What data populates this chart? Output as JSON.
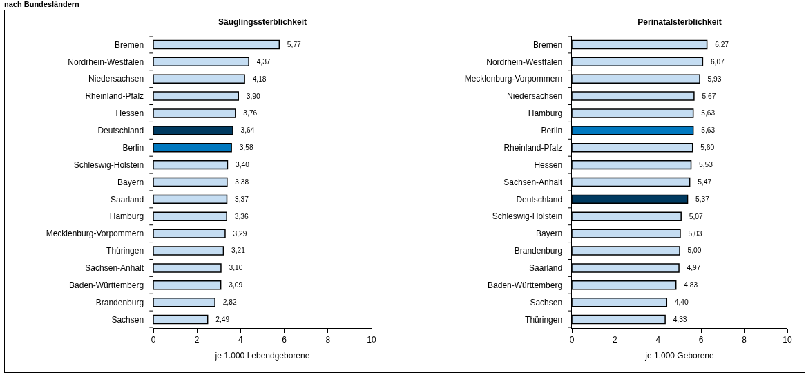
{
  "chart_data": [
    {
      "type": "bar",
      "orientation": "horizontal",
      "title": "Säuglingssterblichkeit",
      "xlabel": "je 1.000 Lebendgeborene",
      "annotations": [
        "nach Bundesländern"
      ],
      "categories": [
        "Bremen",
        "Nordrhein-Westfalen",
        "Niedersachsen",
        "Rheinland-Pfalz",
        "Hessen",
        "Deutschland",
        "Berlin",
        "Schleswig-Holstein",
        "Bayern",
        "Saarland",
        "Hamburg",
        "Mecklenburg-Vorpommern",
        "Thüringen",
        "Sachsen-Anhalt",
        "Baden-Württemberg",
        "Brandenburg",
        "Sachsen"
      ],
      "values": [
        5.77,
        4.37,
        4.18,
        3.9,
        3.76,
        3.64,
        3.58,
        3.4,
        3.38,
        3.37,
        3.36,
        3.29,
        3.21,
        3.1,
        3.09,
        2.82,
        2.49
      ],
      "colors": [
        "#c5ddf2",
        "#c5ddf2",
        "#c5ddf2",
        "#c5ddf2",
        "#c5ddf2",
        "#003a60",
        "#0078bf",
        "#c5ddf2",
        "#c5ddf2",
        "#c5ddf2",
        "#c5ddf2",
        "#c5ddf2",
        "#c5ddf2",
        "#c5ddf2",
        "#c5ddf2",
        "#c5ddf2",
        "#c5ddf2"
      ],
      "value_labels": [
        "5,77",
        "4,37",
        "4,18",
        "3,90",
        "3,76",
        "3,64",
        "3,58",
        "3,40",
        "3,38",
        "3,37",
        "3,36",
        "3,29",
        "3,21",
        "3,10",
        "3,09",
        "2,82",
        "2,49"
      ],
      "xlim": [
        0,
        10
      ],
      "xticks": [
        0,
        2,
        4,
        6,
        8,
        10
      ]
    },
    {
      "type": "bar",
      "orientation": "horizontal",
      "title": "Perinatalsterblichkeit",
      "xlabel": "je 1.000 Geborene",
      "categories": [
        "Bremen",
        "Nordrhein-Westfalen",
        "Mecklenburg-Vorpommern",
        "Niedersachsen",
        "Hamburg",
        "Berlin",
        "Rheinland-Pfalz",
        "Hessen",
        "Sachsen-Anhalt",
        "Deutschland",
        "Schleswig-Holstein",
        "Bayern",
        "Brandenburg",
        "Saarland",
        "Baden-Württemberg",
        "Sachsen",
        "Thüringen"
      ],
      "values": [
        6.27,
        6.07,
        5.93,
        5.67,
        5.63,
        5.63,
        5.6,
        5.53,
        5.47,
        5.37,
        5.07,
        5.03,
        5.0,
        4.97,
        4.83,
        4.4,
        4.33
      ],
      "colors": [
        "#c5ddf2",
        "#c5ddf2",
        "#c5ddf2",
        "#c5ddf2",
        "#c5ddf2",
        "#0078bf",
        "#c5ddf2",
        "#c5ddf2",
        "#c5ddf2",
        "#003a60",
        "#c5ddf2",
        "#c5ddf2",
        "#c5ddf2",
        "#c5ddf2",
        "#c5ddf2",
        "#c5ddf2",
        "#c5ddf2"
      ],
      "value_labels": [
        "6,27",
        "6,07",
        "5,93",
        "5,67",
        "5,63",
        "5,63",
        "5,60",
        "5,53",
        "5,47",
        "5,37",
        "5,07",
        "5,03",
        "5,00",
        "4,97",
        "4,83",
        "4,40",
        "4,33"
      ],
      "xlim": [
        0,
        10
      ],
      "xticks": [
        0,
        2,
        4,
        6,
        8,
        10
      ]
    }
  ]
}
